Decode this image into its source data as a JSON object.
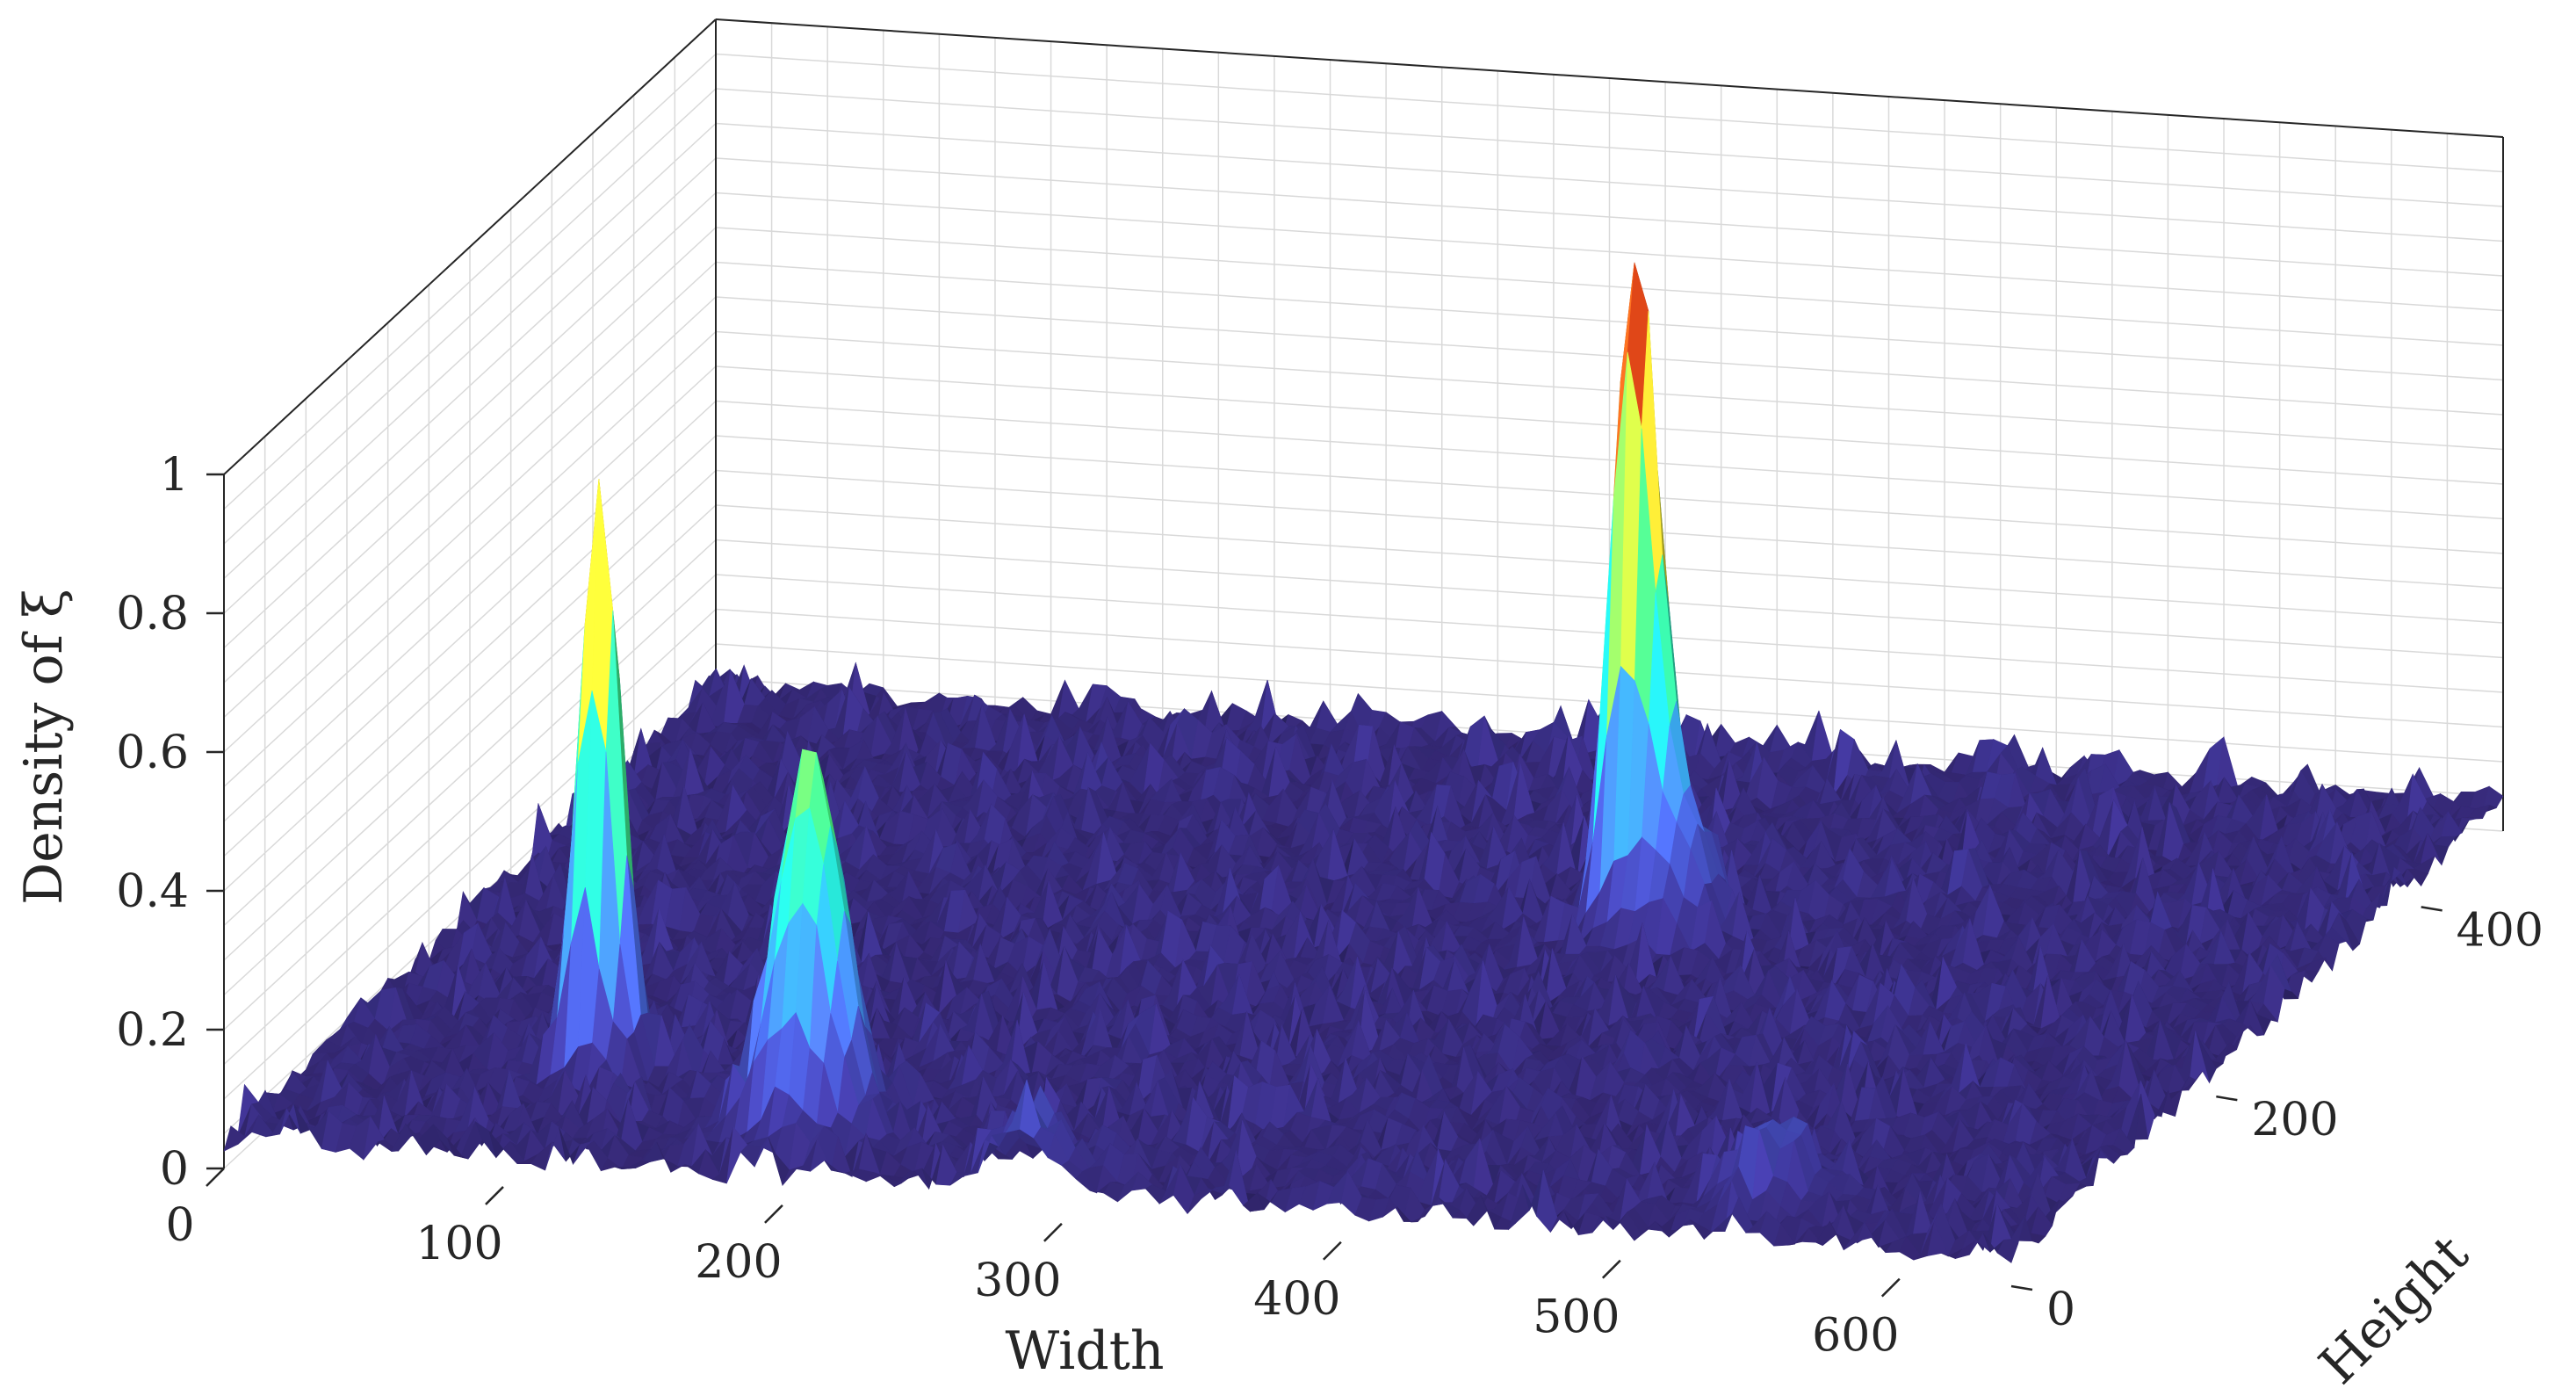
{
  "chart_data": {
    "type": "surface",
    "xlabel": "Width",
    "ylabel": "Height",
    "zlabel": "Density of ξ",
    "xlim": [
      0,
      640
    ],
    "ylim": [
      0,
      480
    ],
    "zlim": [
      0,
      1
    ],
    "x_ticks": [
      0,
      100,
      200,
      300,
      400,
      500,
      600
    ],
    "x_tick_labels": [
      "0",
      "100",
      "200",
      "300",
      "400",
      "500",
      "600"
    ],
    "y_ticks": [
      0,
      200,
      400
    ],
    "y_tick_labels": [
      "0",
      "200",
      "400"
    ],
    "z_ticks": [
      0,
      0.2,
      0.4,
      0.6,
      0.8,
      1
    ],
    "z_tick_labels": [
      "0",
      "0.2",
      "0.4",
      "0.6",
      "0.8",
      "1"
    ],
    "grid": true,
    "colormap": "turbo",
    "colors": {
      "floor": "#2f1f5e",
      "low": "#4a4fb8",
      "mid": "#1fdcaf",
      "high": "#a8f044",
      "peak": "#c2331a"
    },
    "peaks": [
      {
        "x": 100,
        "y": 95,
        "z": 0.85
      },
      {
        "x": 395,
        "y": 300,
        "z": 0.98
      },
      {
        "x": 195,
        "y": 45,
        "z": 0.3
      },
      {
        "x": 190,
        "y": 50,
        "z": 0.28
      },
      {
        "x": 410,
        "y": 295,
        "z": 0.22
      },
      {
        "x": 540,
        "y": 40,
        "z": 0.12
      },
      {
        "x": 285,
        "y": 10,
        "z": 0.1
      }
    ],
    "noise_level": 0.06
  }
}
